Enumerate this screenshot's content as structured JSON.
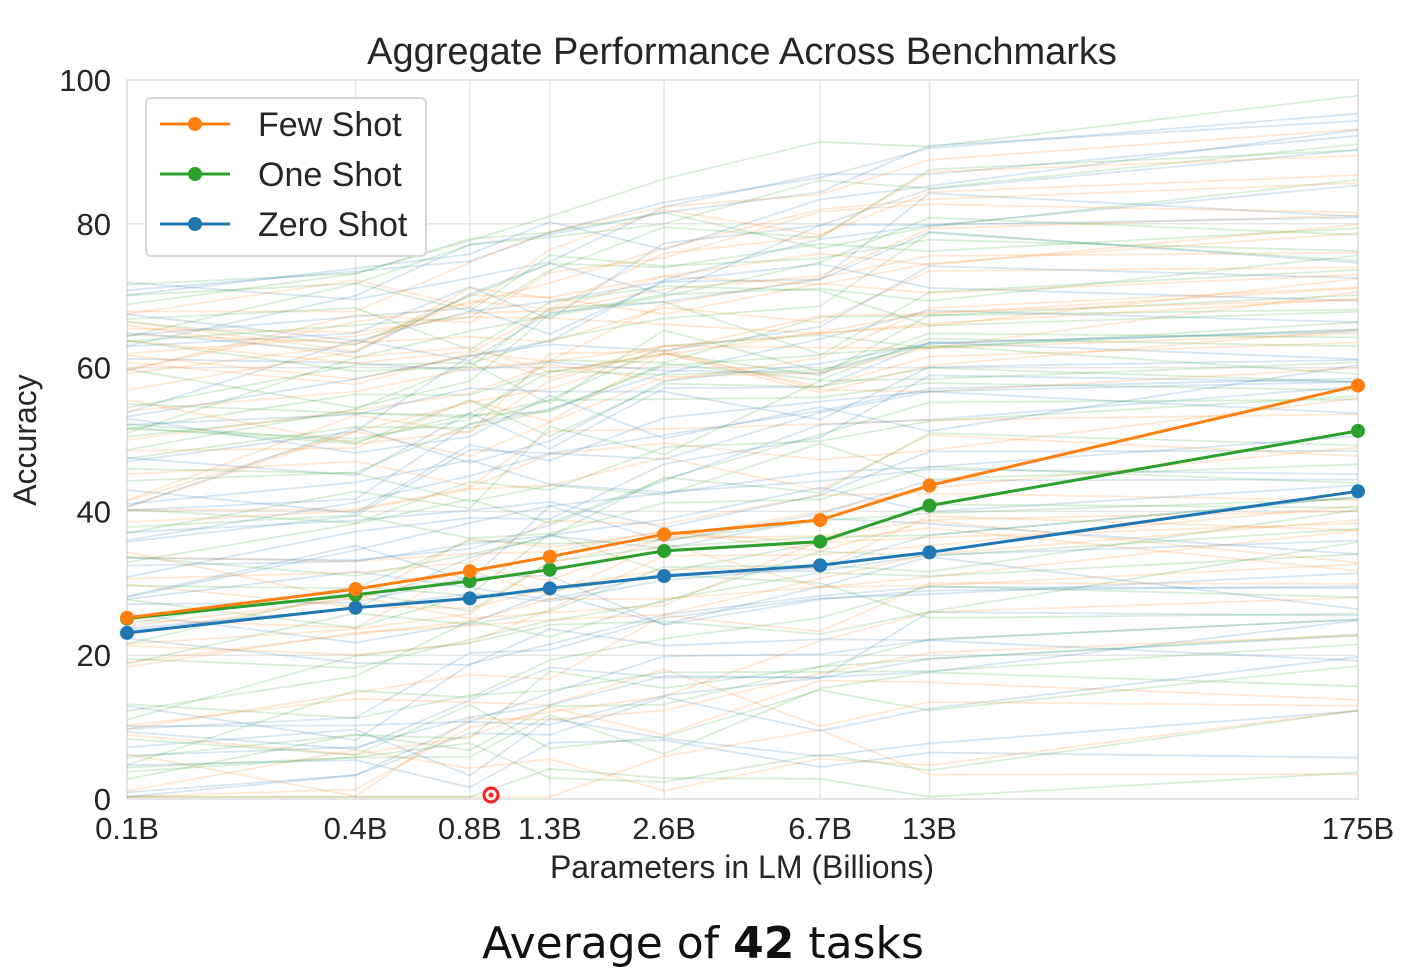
{
  "chart_data": {
    "type": "line",
    "title": "Aggregate Performance Across Benchmarks",
    "xlabel": "Parameters in LM (Billions)",
    "ylabel": "Accuracy",
    "categories": [
      "0.1B",
      "0.4B",
      "0.8B",
      "1.3B",
      "2.6B",
      "6.7B",
      "13B",
      "175B"
    ],
    "x_billions": [
      0.1,
      0.4,
      0.8,
      1.3,
      2.6,
      6.7,
      13,
      175
    ],
    "ylim": [
      0,
      100
    ],
    "yticks": [
      0,
      20,
      40,
      60,
      80,
      100
    ],
    "grid": true,
    "legend_position": "top-left",
    "series": [
      {
        "name": "Few Shot",
        "color": "#ff7f0e",
        "values": [
          25.2,
          29.2,
          31.7,
          33.7,
          36.8,
          38.8,
          43.6,
          57.5
        ]
      },
      {
        "name": "One Shot",
        "color": "#2ca02c",
        "values": [
          25.1,
          28.4,
          30.3,
          31.9,
          34.5,
          35.8,
          40.8,
          51.2
        ]
      },
      {
        "name": "Zero Shot",
        "color": "#1f77b4",
        "values": [
          23.1,
          26.6,
          27.9,
          29.3,
          31.0,
          32.5,
          34.3,
          42.8
        ]
      }
    ],
    "background_task_lines": 42,
    "background_task_opacity": 0.18
  },
  "caption": {
    "prefix": "Average of ",
    "bold": "42",
    "suffix": " tasks"
  },
  "cursor_marker_color": "#ff2020"
}
